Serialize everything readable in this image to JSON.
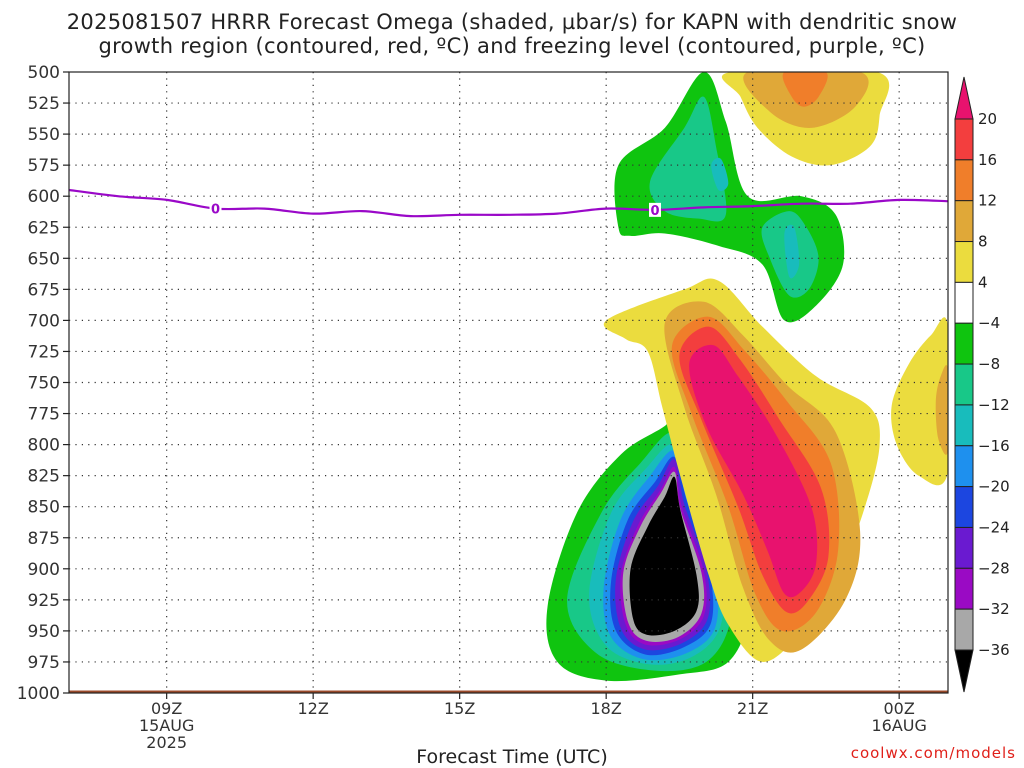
{
  "header": {
    "title_line1": "2025081507 HRRR Forecast Omega (shaded, µbar/s) for KAPN with dendritic snow",
    "title_line2": "growth region (contoured, red, ºC) and freezing level (contoured, purple, ºC)"
  },
  "footer": {
    "credit": "coolwx.com/models",
    "xtitle": "Forecast Time (UTC)"
  },
  "chart_data": {
    "type": "contour",
    "title": "2025081507 HRRR Forecast Omega (shaded, µbar/s) for KAPN with dendritic snow growth region (contoured, red, ºC) and freezing level (contoured, purple, ºC)",
    "xlabel": "Forecast Time (UTC)",
    "ylabel": "",
    "x_unit": "hours since 2025-08-15 07Z",
    "xlim": [
      0,
      18
    ],
    "ylim": [
      1000,
      500
    ],
    "y_ticks": [
      500,
      525,
      550,
      575,
      600,
      625,
      650,
      675,
      700,
      725,
      750,
      775,
      800,
      825,
      850,
      875,
      900,
      925,
      950,
      975,
      1000
    ],
    "x_ticks": [
      {
        "x": 2,
        "labels": [
          "09Z",
          "15AUG",
          "2025"
        ]
      },
      {
        "x": 5,
        "labels": [
          "12Z"
        ]
      },
      {
        "x": 8,
        "labels": [
          "15Z"
        ]
      },
      {
        "x": 11,
        "labels": [
          "18Z"
        ]
      },
      {
        "x": 14,
        "labels": [
          "21Z"
        ]
      },
      {
        "x": 17,
        "labels": [
          "00Z",
          "16AUG"
        ]
      }
    ],
    "grid": "dotted",
    "colorbar": {
      "labels": [
        20,
        16,
        12,
        8,
        4,
        -4,
        -8,
        -12,
        -16,
        -20,
        -24,
        -28,
        -32,
        -36
      ],
      "colors": [
        "#e8126e",
        "#f33e3e",
        "#f07e2a",
        "#e0a838",
        "#ebdc3e",
        "#ffffff",
        "#0fc40f",
        "#18c888",
        "#18bcbc",
        "#1e90ee",
        "#1c46e0",
        "#6a1ad0",
        "#9a0ac4",
        "#a8a8a8",
        "#000000"
      ],
      "extend": "both"
    },
    "freezing_level": {
      "color": "#9a08c8",
      "label": "0",
      "points": [
        [
          0,
          595
        ],
        [
          1,
          600
        ],
        [
          2,
          603
        ],
        [
          3,
          610
        ],
        [
          4,
          610
        ],
        [
          5,
          614
        ],
        [
          6,
          612
        ],
        [
          7,
          616
        ],
        [
          8,
          615
        ],
        [
          9,
          615
        ],
        [
          10,
          614
        ],
        [
          11,
          610
        ],
        [
          12,
          611
        ],
        [
          13,
          609
        ],
        [
          14,
          608
        ],
        [
          15,
          606
        ],
        [
          16,
          606
        ],
        [
          17,
          603
        ],
        [
          18,
          604
        ]
      ]
    },
    "omega_regions": [
      {
        "level": -8,
        "color": "#0fc40f",
        "points": [
          [
            11.25,
            625
          ],
          [
            11.25,
            575
          ],
          [
            12.2,
            545
          ],
          [
            13.0,
            500
          ],
          [
            13.45,
            540
          ],
          [
            13.9,
            600
          ],
          [
            15.0,
            600
          ],
          [
            15.7,
            615
          ],
          [
            15.85,
            655
          ],
          [
            15.3,
            688
          ],
          [
            14.65,
            700
          ],
          [
            14.2,
            655
          ],
          [
            13.3,
            640
          ],
          [
            12.2,
            630
          ],
          [
            11.5,
            632
          ]
        ]
      },
      {
        "level": -12,
        "color": "#18c888",
        "points": [
          [
            11.9,
            588
          ],
          [
            12.6,
            545
          ],
          [
            13.0,
            520
          ],
          [
            13.25,
            560
          ],
          [
            13.45,
            615
          ],
          [
            12.9,
            618
          ],
          [
            12.2,
            612
          ]
        ]
      },
      {
        "level": -12,
        "color": "#18c888",
        "points": [
          [
            14.2,
            625
          ],
          [
            14.75,
            612
          ],
          [
            15.1,
            625
          ],
          [
            15.35,
            650
          ],
          [
            15.15,
            675
          ],
          [
            14.75,
            680
          ],
          [
            14.35,
            650
          ]
        ]
      },
      {
        "level": -16,
        "color": "#18bcbc",
        "points": [
          [
            13.15,
            575
          ],
          [
            13.35,
            570
          ],
          [
            13.5,
            590
          ],
          [
            13.3,
            595
          ]
        ]
      },
      {
        "level": -16,
        "color": "#18bcbc",
        "points": [
          [
            14.65,
            630
          ],
          [
            14.85,
            625
          ],
          [
            14.95,
            655
          ],
          [
            14.75,
            665
          ]
        ]
      },
      {
        "level": -4,
        "color": "#0fc40f",
        "points": [
          [
            9.8,
            930
          ],
          [
            10.4,
            855
          ],
          [
            11.3,
            808
          ],
          [
            12.2,
            785
          ],
          [
            12.5,
            772
          ],
          [
            13.1,
            828
          ],
          [
            13.6,
            878
          ],
          [
            13.9,
            935
          ],
          [
            13.5,
            975
          ],
          [
            12.5,
            985
          ],
          [
            11.0,
            990
          ],
          [
            10.0,
            975
          ]
        ]
      },
      {
        "level": -8,
        "color": "#18c888",
        "points": [
          [
            10.2,
            925
          ],
          [
            10.9,
            855
          ],
          [
            11.7,
            815
          ],
          [
            12.4,
            790
          ],
          [
            12.9,
            830
          ],
          [
            13.45,
            885
          ],
          [
            13.55,
            940
          ],
          [
            13.05,
            975
          ],
          [
            12.0,
            982
          ],
          [
            10.8,
            968
          ]
        ]
      },
      {
        "level": -12,
        "color": "#18bcbc",
        "points": [
          [
            10.65,
            920
          ],
          [
            11.1,
            855
          ],
          [
            11.8,
            820
          ],
          [
            12.4,
            800
          ],
          [
            12.8,
            840
          ],
          [
            13.35,
            895
          ],
          [
            13.35,
            945
          ],
          [
            12.8,
            970
          ],
          [
            11.9,
            977
          ],
          [
            11.0,
            962
          ]
        ]
      },
      {
        "level": -16,
        "color": "#1e90ee",
        "points": [
          [
            10.95,
            915
          ],
          [
            11.3,
            860
          ],
          [
            11.9,
            825
          ],
          [
            12.4,
            805
          ],
          [
            12.7,
            840
          ],
          [
            13.2,
            895
          ],
          [
            13.25,
            945
          ],
          [
            12.7,
            967
          ],
          [
            11.8,
            973
          ],
          [
            11.1,
            955
          ]
        ]
      },
      {
        "level": -20,
        "color": "#1c46e0",
        "points": [
          [
            11.1,
            910
          ],
          [
            11.45,
            860
          ],
          [
            12.0,
            830
          ],
          [
            12.4,
            810
          ],
          [
            12.65,
            845
          ],
          [
            13.1,
            898
          ],
          [
            13.15,
            943
          ],
          [
            12.6,
            963
          ],
          [
            11.8,
            969
          ],
          [
            11.2,
            950
          ]
        ]
      },
      {
        "level": -24,
        "color": "#6a1ad0",
        "points": [
          [
            11.2,
            908
          ],
          [
            11.55,
            862
          ],
          [
            12.05,
            834
          ],
          [
            12.4,
            812
          ],
          [
            12.6,
            848
          ],
          [
            13.05,
            900
          ],
          [
            13.08,
            940
          ],
          [
            12.55,
            960
          ],
          [
            11.8,
            965
          ],
          [
            11.3,
            948
          ]
        ]
      },
      {
        "level": -28,
        "color": "#9a0ac4",
        "points": [
          [
            11.3,
            905
          ],
          [
            11.65,
            865
          ],
          [
            12.1,
            837
          ],
          [
            12.4,
            818
          ],
          [
            12.55,
            850
          ],
          [
            13.0,
            902
          ],
          [
            13.0,
            938
          ],
          [
            12.5,
            957
          ],
          [
            11.8,
            961
          ],
          [
            11.4,
            945
          ]
        ]
      },
      {
        "level": -32,
        "color": "#a8a8a8",
        "points": [
          [
            11.35,
            903
          ],
          [
            11.7,
            866
          ],
          [
            12.12,
            839
          ],
          [
            12.4,
            822
          ],
          [
            12.52,
            852
          ],
          [
            12.95,
            903
          ],
          [
            12.95,
            936
          ],
          [
            12.47,
            955
          ],
          [
            11.82,
            958
          ],
          [
            11.45,
            943
          ]
        ]
      },
      {
        "level": -36,
        "color": "#000000",
        "points": [
          [
            11.5,
            900
          ],
          [
            11.85,
            866
          ],
          [
            12.2,
            842
          ],
          [
            12.4,
            826
          ],
          [
            12.52,
            853
          ],
          [
            12.85,
            905
          ],
          [
            12.85,
            934
          ],
          [
            12.4,
            950
          ],
          [
            11.82,
            953
          ],
          [
            11.55,
            940
          ]
        ]
      },
      {
        "level": 4,
        "color": "#ebdc3e",
        "points": [
          [
            11.0,
            700
          ],
          [
            12.6,
            675
          ],
          [
            13.3,
            668
          ],
          [
            14.2,
            705
          ],
          [
            15.3,
            745
          ],
          [
            16.4,
            770
          ],
          [
            16.6,
            800
          ],
          [
            16.3,
            850
          ],
          [
            15.8,
            900
          ],
          [
            15.0,
            950
          ],
          [
            14.2,
            975
          ],
          [
            13.5,
            945
          ],
          [
            13.1,
            905
          ],
          [
            12.55,
            830
          ],
          [
            12.15,
            770
          ],
          [
            11.85,
            725
          ],
          [
            11.4,
            715
          ]
        ]
      },
      {
        "level": 8,
        "color": "#e0a838",
        "points": [
          [
            12.2,
            702
          ],
          [
            13.0,
            685
          ],
          [
            13.8,
            712
          ],
          [
            14.7,
            752
          ],
          [
            15.7,
            790
          ],
          [
            16.2,
            870
          ],
          [
            15.9,
            925
          ],
          [
            15.0,
            965
          ],
          [
            14.35,
            958
          ],
          [
            13.8,
            915
          ],
          [
            13.25,
            840
          ],
          [
            12.6,
            770
          ]
        ]
      },
      {
        "level": 12,
        "color": "#f07e2a",
        "points": [
          [
            12.35,
            720
          ],
          [
            13.1,
            697
          ],
          [
            13.85,
            725
          ],
          [
            14.7,
            765
          ],
          [
            15.6,
            815
          ],
          [
            15.75,
            885
          ],
          [
            15.3,
            935
          ],
          [
            14.6,
            950
          ],
          [
            14.05,
            920
          ],
          [
            13.5,
            850
          ],
          [
            12.75,
            775
          ]
        ]
      },
      {
        "level": 16,
        "color": "#f33e3e",
        "points": [
          [
            12.5,
            728
          ],
          [
            13.1,
            705
          ],
          [
            13.75,
            732
          ],
          [
            14.55,
            780
          ],
          [
            15.4,
            835
          ],
          [
            15.55,
            890
          ],
          [
            15.15,
            925
          ],
          [
            14.7,
            935
          ],
          [
            14.2,
            905
          ],
          [
            13.7,
            850
          ],
          [
            12.95,
            780
          ]
        ]
      },
      {
        "level": 20,
        "color": "#e8126e",
        "points": [
          [
            12.7,
            735
          ],
          [
            13.2,
            720
          ],
          [
            13.7,
            745
          ],
          [
            14.45,
            790
          ],
          [
            15.2,
            850
          ],
          [
            15.3,
            895
          ],
          [
            15.0,
            918
          ],
          [
            14.65,
            920
          ],
          [
            14.3,
            885
          ],
          [
            13.8,
            840
          ],
          [
            13.05,
            785
          ]
        ]
      },
      {
        "level": 4,
        "color": "#ebdc3e",
        "points": [
          [
            13.55,
            500
          ],
          [
            16.55,
            500
          ],
          [
            16.6,
            535
          ],
          [
            16.4,
            560
          ],
          [
            15.6,
            575
          ],
          [
            14.8,
            568
          ],
          [
            14.1,
            545
          ],
          [
            13.75,
            520
          ]
        ]
      },
      {
        "level": 8,
        "color": "#e0a838",
        "points": [
          [
            13.9,
            500
          ],
          [
            16.2,
            500
          ],
          [
            16.1,
            528
          ],
          [
            15.2,
            545
          ],
          [
            14.35,
            532
          ]
        ]
      },
      {
        "level": 12,
        "color": "#f07e2a",
        "points": [
          [
            14.65,
            500
          ],
          [
            15.5,
            500
          ],
          [
            15.35,
            520
          ],
          [
            15.05,
            528
          ],
          [
            14.8,
            520
          ]
        ]
      },
      {
        "level": 4,
        "color": "#ebdc3e",
        "points": [
          [
            18.0,
            705
          ],
          [
            18.0,
            822
          ],
          [
            17.4,
            825
          ],
          [
            16.95,
            800
          ],
          [
            16.85,
            768
          ],
          [
            17.2,
            735
          ],
          [
            17.65,
            712
          ]
        ]
      },
      {
        "level": 8,
        "color": "#e0a838",
        "points": [
          [
            18.0,
            740
          ],
          [
            18.0,
            805
          ],
          [
            17.8,
            795
          ],
          [
            17.75,
            765
          ],
          [
            17.85,
            745
          ]
        ]
      }
    ],
    "ground": {
      "color": "#9a4a2a",
      "pressure_top": 998
    }
  }
}
